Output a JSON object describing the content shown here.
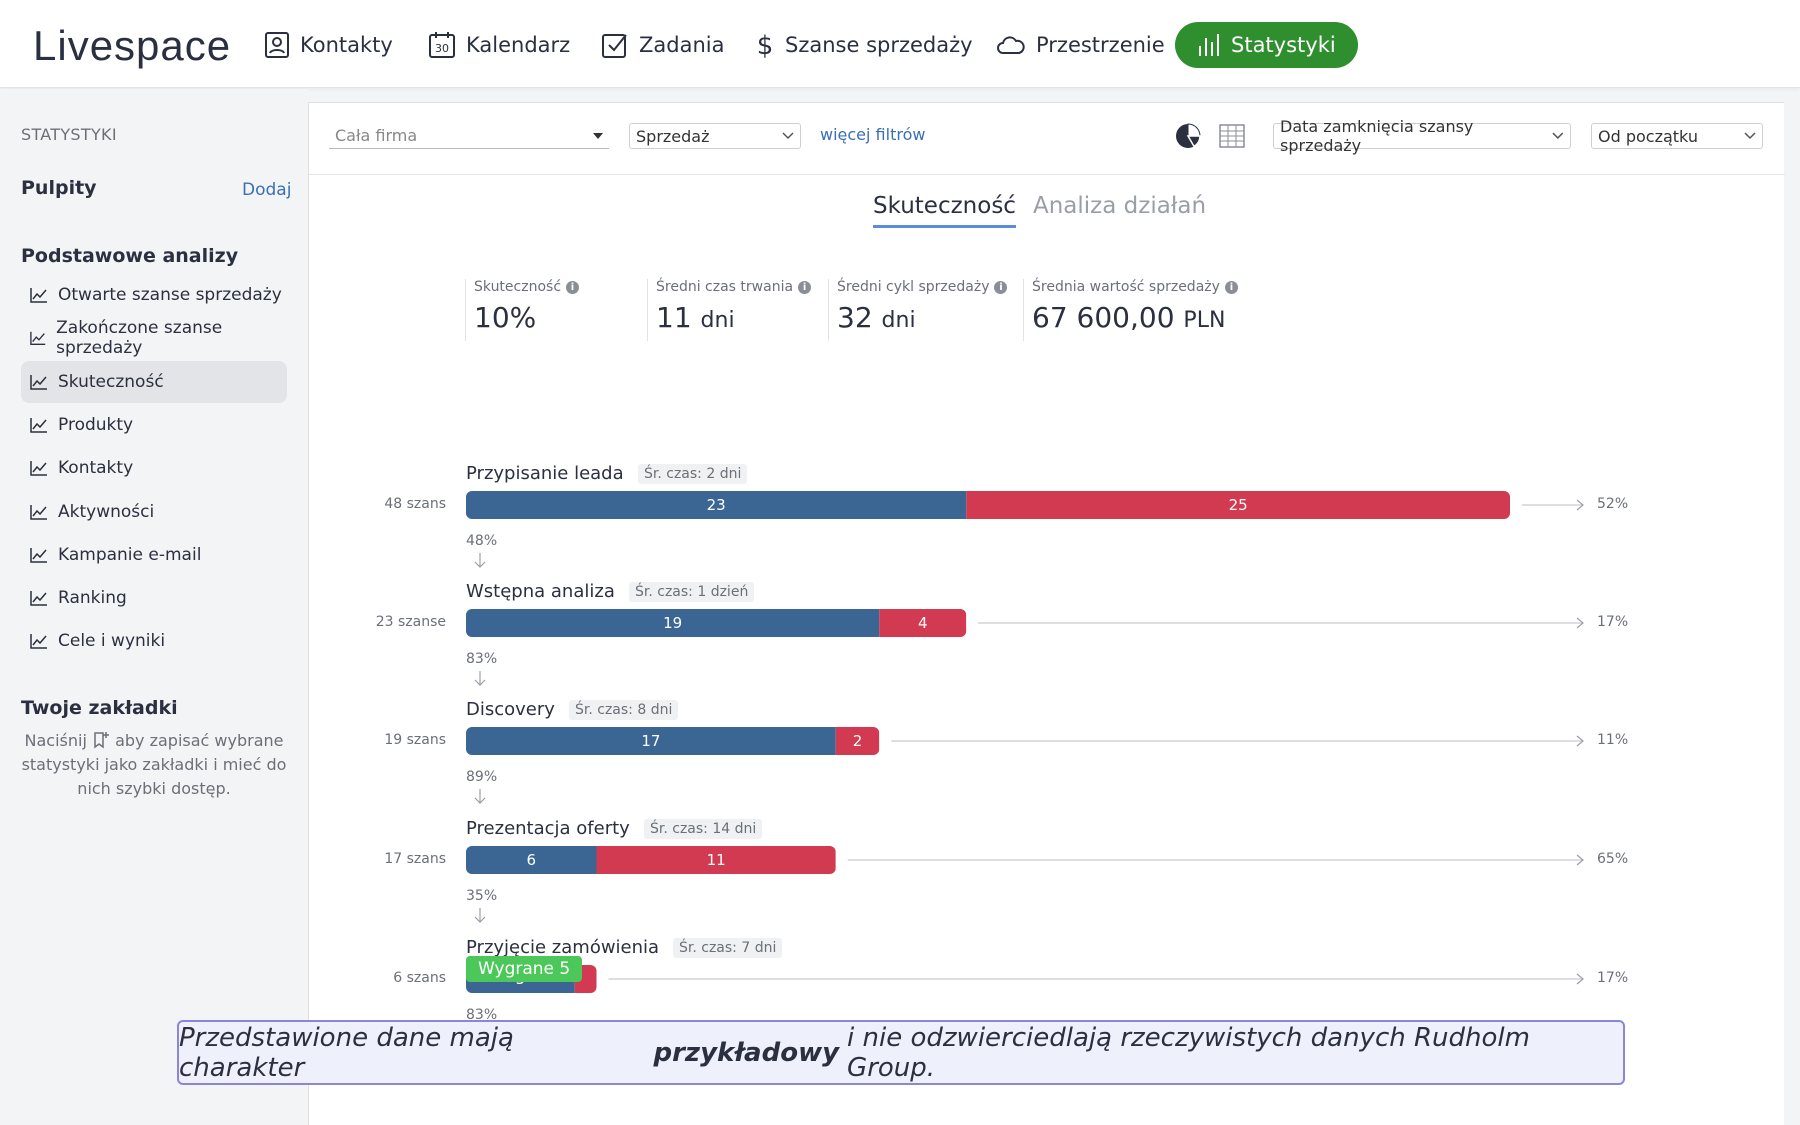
{
  "app": {
    "logo": "Livespace",
    "nav": [
      {
        "label": "Kontakty",
        "icon": "contact-card-icon"
      },
      {
        "label": "Kalendarz",
        "icon": "calendar-icon"
      },
      {
        "label": "Zadania",
        "icon": "checkbox-icon"
      },
      {
        "label": "Szanse sprzedaży",
        "icon": "dollar-icon"
      },
      {
        "label": "Przestrzenie",
        "icon": "cloud-icon"
      },
      {
        "label": "Statystyki",
        "icon": "bar-chart-icon",
        "active": true
      }
    ]
  },
  "sidebar": {
    "section_label": "STATYSTYKI",
    "dashboards_heading": "Pulpity",
    "add_label": "Dodaj",
    "basic_heading": "Podstawowe analizy",
    "items": [
      {
        "label": "Otwarte szanse sprzedaży"
      },
      {
        "label": "Zakończone szanse sprzedaży"
      },
      {
        "label": "Skuteczność",
        "active": true
      },
      {
        "label": "Produkty"
      },
      {
        "label": "Kontakty"
      },
      {
        "label": "Aktywności"
      },
      {
        "label": "Kampanie e-mail"
      },
      {
        "label": "Ranking"
      },
      {
        "label": "Cele i wyniki"
      }
    ],
    "bookmarks_heading": "Twoje zakładki",
    "bookmarks_note_before": "Naciśnij",
    "bookmarks_note_after": "aby zapisać wybrane statystyki jako zakładki i mieć do nich szybki dostęp."
  },
  "filters": {
    "company_placeholder": "Cała firma",
    "pipeline": "Sprzedaż",
    "more_filters": "więcej filtrów",
    "date_field": "Data zamknięcia szansy sprzedaży",
    "date_range": "Od początku"
  },
  "tabs": {
    "active": "Skuteczność",
    "inactive": "Analiza działań"
  },
  "kpis": [
    {
      "label": "Skuteczność",
      "value": "10%",
      "unit": ""
    },
    {
      "label": "Średni czas trwania",
      "value": "11",
      "unit": "dni"
    },
    {
      "label": "Średni cykl sprzedaży",
      "value": "32",
      "unit": "dni"
    },
    {
      "label": "Średnia wartość sprzedaży",
      "value": "67 600,00",
      "unit": "PLN"
    }
  ],
  "colors": {
    "won": "#3b6694",
    "lost": "#d13a50",
    "accent_green": "#2f8f2f",
    "won_badge": "#4cc85a"
  },
  "chart_data": {
    "type": "bar",
    "orientation": "horizontal",
    "stacked": true,
    "categories": [
      "Przypisanie leada",
      "Wstępna analiza",
      "Discovery",
      "Prezentacja oferty",
      "Przyjęcie zamówienia"
    ],
    "stage_times": [
      "Śr. czas: 2 dni",
      "Śr. czas: 1 dzień",
      "Śr. czas: 8 dni",
      "Śr. czas: 14 dni",
      "Śr. czas: 7 dni"
    ],
    "stage_counts": [
      "48 szans",
      "23 szanse",
      "19 szans",
      "17 szans",
      "6 szans"
    ],
    "series": [
      {
        "name": "advanced",
        "values": [
          23,
          19,
          17,
          6,
          5
        ]
      },
      {
        "name": "lost",
        "values": [
          25,
          4,
          2,
          11,
          1
        ]
      }
    ],
    "value_labels": {
      "advanced": [
        "23",
        "19",
        "17",
        "6",
        "5"
      ],
      "lost": [
        "25",
        "4",
        "2",
        "11",
        ""
      ]
    },
    "conversion": [
      "48%",
      "83%",
      "89%",
      "35%",
      "83%"
    ],
    "loss_rate": [
      "52%",
      "17%",
      "11%",
      "65%",
      "17%"
    ],
    "won_label": "Wygrane 5",
    "xlim": [
      0,
      48
    ]
  },
  "disclaimer": {
    "before": "Przedstawione dane mają charakter",
    "bold": "przykładowy",
    "after": "i nie odzwierciedlają rzeczywistych danych Rudholm Group."
  }
}
